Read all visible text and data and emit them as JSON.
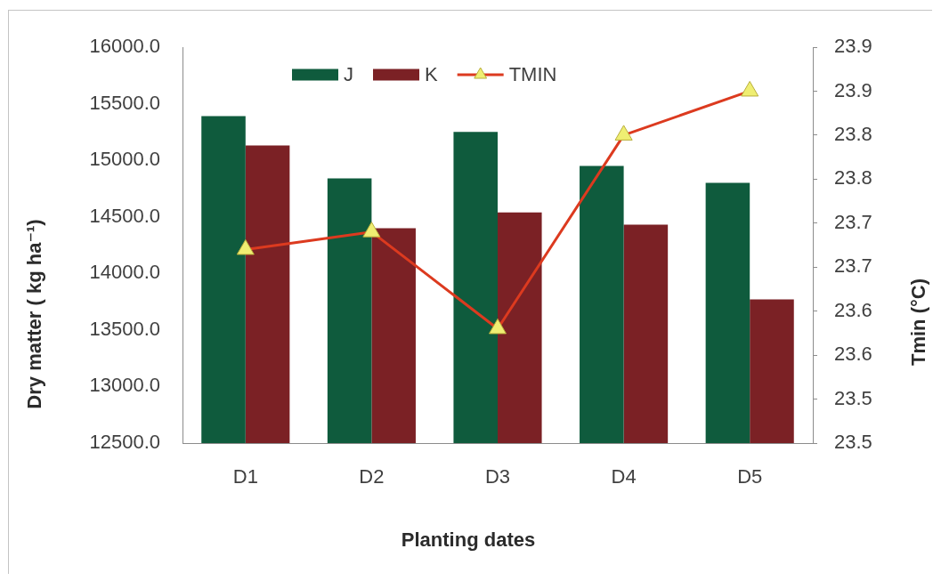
{
  "chart_data": {
    "type": "bar",
    "xlabel": "Planting dates",
    "ylabel": "Dry matter ( kg ha⁻¹)",
    "y2label": "Tmin (°C)",
    "categories": [
      "D1",
      "D2",
      "D3",
      "D4",
      "D5"
    ],
    "series": [
      {
        "name": "J",
        "color": "#0f5b3d",
        "values": [
          15390,
          14840,
          15250,
          14950,
          14800
        ]
      },
      {
        "name": "K",
        "color": "#7b2125",
        "values": [
          15130,
          14400,
          14540,
          14430,
          13770
        ]
      },
      {
        "name": "TMIN",
        "type": "line",
        "axis": "y2",
        "color": "#dc3a1f",
        "values": [
          23.72,
          23.74,
          23.63,
          23.85,
          23.9
        ]
      }
    ],
    "ylim": [
      12500,
      16000
    ],
    "yticks": [
      {
        "value": 12500,
        "label": "12500.0"
      },
      {
        "value": 13000,
        "label": "13000.0"
      },
      {
        "value": 13500,
        "label": "13500.0"
      },
      {
        "value": 14000,
        "label": "14000.0"
      },
      {
        "value": 14500,
        "label": "14500.0"
      },
      {
        "value": 15000,
        "label": "15000.0"
      },
      {
        "value": 15500,
        "label": "15500.0"
      },
      {
        "value": 16000,
        "label": "16000.0"
      }
    ],
    "y2lim": [
      23.5,
      23.95
    ],
    "y2ticks": [
      23.5,
      {
        "value": 23.55,
        "label": "23.5"
      },
      23.6,
      {
        "value": 23.65,
        "label": "23.6"
      },
      23.7,
      {
        "value": 23.75,
        "label": "23.7"
      },
      23.8,
      {
        "value": 23.85,
        "label": "23.8"
      },
      23.9,
      {
        "value": 23.95,
        "label": "23.9"
      }
    ],
    "legend": "top",
    "marker": "triangle"
  }
}
